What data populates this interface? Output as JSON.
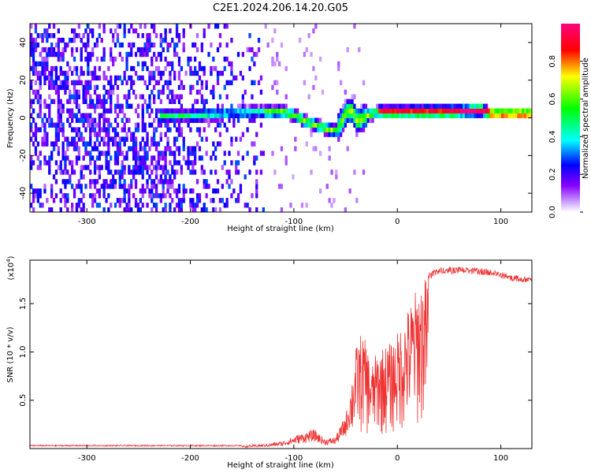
{
  "title": "C2E1.2024.206.14.20.G05",
  "chart_data": [
    {
      "type": "heatmap",
      "xlabel": "Height of straight line (km)",
      "ylabel": "Frequency (Hz)",
      "xlim": [
        -355,
        130
      ],
      "ylim": [
        -50,
        50
      ],
      "xticks": [
        -300,
        -200,
        -100,
        0,
        100
      ],
      "yticks": [
        -40,
        -20,
        0,
        20,
        40
      ],
      "colorbar": {
        "label": "Normalized spectral amplitude",
        "range": [
          0,
          1
        ],
        "ticks": [
          "0.0",
          "0.2",
          "0.4",
          "0.6",
          "0.8"
        ],
        "tick_values": [
          0,
          0.2,
          0.4,
          0.6,
          0.8
        ],
        "colors": [
          "#ffffff",
          "#8800ff",
          "#0000ff",
          "#00ffff",
          "#00ff00",
          "#ffff00",
          "#ff0000",
          "#ff0080"
        ]
      },
      "ridge": {
        "height_km": [
          -230,
          -200,
          -170,
          -140,
          -120,
          -110,
          -100,
          -90,
          -80,
          -70,
          -60,
          -50,
          -45,
          -40,
          -30,
          -20,
          -10,
          0,
          20,
          50,
          80,
          90,
          100,
          130
        ],
        "frequency_hz": [
          0,
          0,
          1,
          2,
          2,
          2,
          0,
          -3,
          -5,
          -7,
          -8,
          2,
          3,
          -3,
          0,
          2,
          2,
          2,
          2,
          2,
          3,
          1,
          1,
          1
        ]
      }
    },
    {
      "type": "line",
      "xlabel": "Height of straight line (km)",
      "ylabel": "SNR (10 * v/v)",
      "scale_label": "(x10",
      "scale_exponent": "4",
      "xlim": [
        -355,
        130
      ],
      "ylim": [
        0,
        1.95
      ],
      "xticks": [
        -300,
        -200,
        -100,
        0,
        100
      ],
      "yticks": [
        "0.5",
        "1.0",
        "1.5"
      ],
      "ytick_values": [
        0.5,
        1.0,
        1.5
      ],
      "color": "#ee3333",
      "envelope": {
        "x": [
          -355,
          -150,
          -125,
          -110,
          -95,
          -80,
          -70,
          -60,
          -50,
          -45,
          -40,
          -35,
          -30,
          -25,
          -20,
          -15,
          -10,
          -5,
          0,
          10,
          20,
          30,
          40,
          60,
          80,
          95,
          110,
          130
        ],
        "y": [
          0.03,
          0.03,
          0.05,
          0.08,
          0.15,
          0.2,
          0.1,
          0.12,
          0.35,
          0.65,
          1.05,
          1.2,
          1.1,
          0.85,
          1.0,
          1.05,
          1.08,
          1.1,
          1.2,
          1.45,
          1.7,
          1.82,
          1.87,
          1.88,
          1.87,
          1.85,
          1.8,
          1.78
        ]
      }
    }
  ]
}
